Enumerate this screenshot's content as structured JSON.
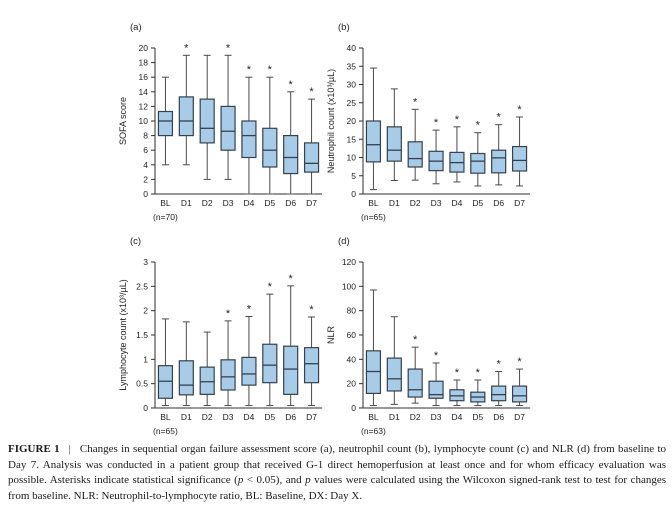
{
  "caption": {
    "label": "FIGURE 1",
    "separator": "|",
    "segments": [
      {
        "text": "Changes in sequential organ failure assessment score (a), neutrophil count (b), lymphocyte count (c) and NLR (d) from baseline to Day 7. Analysis was conducted in a patient group that received G-1 direct hemoperfusion at least once and for whom efficacy evaluation was possible. Asterisks indicate statistical significance (",
        "italic": false
      },
      {
        "text": "p",
        "italic": true
      },
      {
        "text": " < 0.05), and ",
        "italic": false
      },
      {
        "text": "p",
        "italic": true
      },
      {
        "text": " values were calculated using the Wilcoxon signed-rank test to test for changes from baseline. NLR: Neutrophil-to-lymphocyte ratio, BL: Baseline, DX: Day X.",
        "italic": false
      }
    ]
  },
  "style": {
    "box_fill": "#a8cbe8",
    "box_stroke": "#35414e",
    "whisker_stroke": "#4a4a4a",
    "axis_stroke": "#2e2e2e",
    "text_color": "#1f1f1f",
    "sig_marker": "*"
  },
  "chart_data": [
    {
      "type": "box",
      "panel_label": "(a)",
      "ylabel": "SOFA score",
      "ylim": [
        0,
        20
      ],
      "yticks": [
        0,
        2,
        4,
        6,
        8,
        10,
        12,
        14,
        16,
        18,
        20
      ],
      "categories": [
        "BL",
        "D1",
        "D2",
        "D3",
        "D4",
        "D5",
        "D6",
        "D7"
      ],
      "n_label": "(n=70)",
      "boxes": [
        {
          "category": "BL",
          "low": 4,
          "q1": 8,
          "median": 10,
          "q3": 11.3,
          "high": 16,
          "significant": false
        },
        {
          "category": "D1",
          "low": 4,
          "q1": 8,
          "median": 10,
          "q3": 13.3,
          "high": 19,
          "significant": true
        },
        {
          "category": "D2",
          "low": 2,
          "q1": 7,
          "median": 9,
          "q3": 13,
          "high": 19,
          "significant": false
        },
        {
          "category": "D3",
          "low": 2,
          "q1": 6,
          "median": 8.6,
          "q3": 12,
          "high": 19,
          "significant": true
        },
        {
          "category": "D4",
          "low": 0,
          "q1": 5,
          "median": 8,
          "q3": 10,
          "high": 16,
          "significant": true
        },
        {
          "category": "D5",
          "low": 0,
          "q1": 3.7,
          "median": 6,
          "q3": 9,
          "high": 16,
          "significant": true
        },
        {
          "category": "D6",
          "low": 0,
          "q1": 2.8,
          "median": 5,
          "q3": 8,
          "high": 14,
          "significant": true
        },
        {
          "category": "D7",
          "low": 0,
          "q1": 3,
          "median": 4.2,
          "q3": 7,
          "high": 13,
          "significant": true
        }
      ]
    },
    {
      "type": "box",
      "panel_label": "(b)",
      "ylabel": "Neutrophil count (x10³/µL)",
      "ylim": [
        0,
        40
      ],
      "yticks": [
        0,
        5,
        10,
        15,
        20,
        25,
        30,
        35,
        40
      ],
      "categories": [
        "BL",
        "D1",
        "D2",
        "D3",
        "D4",
        "D5",
        "D6",
        "D7"
      ],
      "n_label": "(n=65)",
      "boxes": [
        {
          "category": "BL",
          "low": 1.2,
          "q1": 8.8,
          "median": 13.5,
          "q3": 20,
          "high": 34.5,
          "significant": false
        },
        {
          "category": "D1",
          "low": 3.7,
          "q1": 9,
          "median": 12,
          "q3": 18.4,
          "high": 28.8,
          "significant": false
        },
        {
          "category": "D2",
          "low": 3.8,
          "q1": 7.4,
          "median": 9.7,
          "q3": 14.3,
          "high": 23.2,
          "significant": true
        },
        {
          "category": "D3",
          "low": 2.8,
          "q1": 6.4,
          "median": 9,
          "q3": 11.7,
          "high": 17.5,
          "significant": true
        },
        {
          "category": "D4",
          "low": 3.3,
          "q1": 6,
          "median": 8.6,
          "q3": 11.4,
          "high": 18.4,
          "significant": true
        },
        {
          "category": "D5",
          "low": 2.2,
          "q1": 5.7,
          "median": 9,
          "q3": 11.1,
          "high": 16.8,
          "significant": true
        },
        {
          "category": "D6",
          "low": 2.5,
          "q1": 5.8,
          "median": 9.9,
          "q3": 12,
          "high": 19,
          "significant": true
        },
        {
          "category": "D7",
          "low": 2.2,
          "q1": 6.3,
          "median": 9.2,
          "q3": 13,
          "high": 21.1,
          "significant": true
        }
      ]
    },
    {
      "type": "box",
      "panel_label": "(c)",
      "ylabel": "Lymphocyte count (x10³/µL)",
      "ylim": [
        0,
        3
      ],
      "yticks": [
        0,
        0.5,
        1,
        1.5,
        2,
        2.5,
        3
      ],
      "categories": [
        "BL",
        "D1",
        "D2",
        "D3",
        "D4",
        "D5",
        "D6",
        "D7"
      ],
      "n_label": "(n=65)",
      "boxes": [
        {
          "category": "BL",
          "low": 0.05,
          "q1": 0.2,
          "median": 0.55,
          "q3": 0.87,
          "high": 1.83,
          "significant": false
        },
        {
          "category": "D1",
          "low": 0.05,
          "q1": 0.27,
          "median": 0.47,
          "q3": 0.97,
          "high": 1.77,
          "significant": false
        },
        {
          "category": "D2",
          "low": 0.05,
          "q1": 0.28,
          "median": 0.54,
          "q3": 0.84,
          "high": 1.56,
          "significant": false
        },
        {
          "category": "D3",
          "low": 0.05,
          "q1": 0.37,
          "median": 0.64,
          "q3": 0.99,
          "high": 1.79,
          "significant": true
        },
        {
          "category": "D4",
          "low": 0.05,
          "q1": 0.47,
          "median": 0.7,
          "q3": 1.04,
          "high": 1.88,
          "significant": true
        },
        {
          "category": "D5",
          "low": 0.05,
          "q1": 0.52,
          "median": 0.88,
          "q3": 1.31,
          "high": 2.34,
          "significant": true
        },
        {
          "category": "D6",
          "low": 0.05,
          "q1": 0.28,
          "median": 0.8,
          "q3": 1.27,
          "high": 2.51,
          "significant": true
        },
        {
          "category": "D7",
          "low": 0.05,
          "q1": 0.52,
          "median": 0.91,
          "q3": 1.24,
          "high": 1.87,
          "significant": true
        }
      ]
    },
    {
      "type": "box",
      "panel_label": "(d)",
      "ylabel": "NLR",
      "ylim": [
        0,
        120
      ],
      "yticks": [
        0,
        20,
        40,
        60,
        80,
        100,
        120
      ],
      "categories": [
        "BL",
        "D1",
        "D2",
        "D3",
        "D4",
        "D5",
        "D6",
        "D7"
      ],
      "n_label": "(n=63)",
      "boxes": [
        {
          "category": "BL",
          "low": 2,
          "q1": 12,
          "median": 30,
          "q3": 47,
          "high": 97,
          "significant": false
        },
        {
          "category": "D1",
          "low": 3,
          "q1": 14,
          "median": 24,
          "q3": 41,
          "high": 75,
          "significant": false
        },
        {
          "category": "D2",
          "low": 4,
          "q1": 9,
          "median": 15,
          "q3": 32,
          "high": 50,
          "significant": true
        },
        {
          "category": "D3",
          "low": 2,
          "q1": 8,
          "median": 11,
          "q3": 22,
          "high": 37,
          "significant": true
        },
        {
          "category": "D4",
          "low": 2,
          "q1": 6,
          "median": 10,
          "q3": 15,
          "high": 23,
          "significant": true
        },
        {
          "category": "D5",
          "low": 2,
          "q1": 5,
          "median": 9,
          "q3": 13,
          "high": 23,
          "significant": true
        },
        {
          "category": "D6",
          "low": 2,
          "q1": 6,
          "median": 11,
          "q3": 18,
          "high": 30,
          "significant": true
        },
        {
          "category": "D7",
          "low": 2,
          "q1": 5,
          "median": 10,
          "q3": 18,
          "high": 32,
          "significant": true
        }
      ]
    }
  ]
}
